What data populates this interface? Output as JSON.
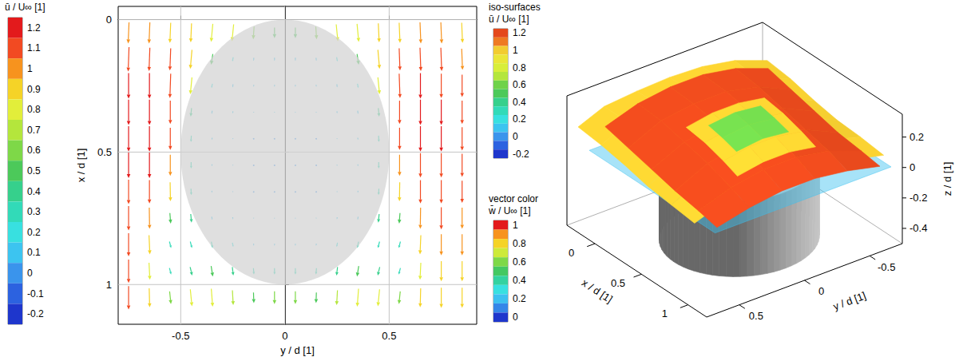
{
  "chart_data": [
    {
      "type": "vector",
      "x_label": "y / d [1]",
      "y_label": "x / d [1]",
      "xlim": [
        -0.8,
        0.92
      ],
      "xticks": [
        -0.5,
        0,
        0.5
      ],
      "ylim": [
        1.15,
        -0.05
      ],
      "yticks": [
        0,
        0.5,
        1
      ],
      "grid": true,
      "cylinder": {
        "y": 0,
        "x": 0.5,
        "d": 1
      },
      "vectors": {
        "y": [
          -0.75,
          -0.65,
          -0.55,
          -0.45,
          -0.35,
          -0.25,
          -0.15,
          -0.05,
          0.05,
          0.15,
          0.25,
          0.35,
          0.45,
          0.55,
          0.65,
          0.75,
          0.85
        ],
        "x": [
          0.05,
          0.15,
          0.25,
          0.35,
          0.45,
          0.55,
          0.65,
          0.75,
          0.85,
          0.95,
          1.05
        ],
        "u": [
          [
            1.0,
            1.0,
            0.95,
            0.9,
            0.85,
            0.8,
            0.6,
            0.5,
            0.5,
            0.6,
            0.8,
            0.85,
            0.9,
            0.95,
            1.0,
            1.0,
            0.95
          ],
          [
            1.15,
            1.1,
            1.05,
            0.9,
            0.5,
            0.2,
            0.15,
            0.15,
            0.15,
            0.15,
            0.2,
            0.5,
            0.9,
            1.05,
            1.1,
            1.1,
            1.0
          ],
          [
            1.2,
            1.2,
            1.15,
            0.8,
            0.2,
            0.15,
            0.1,
            0.1,
            0.1,
            0.1,
            0.15,
            0.2,
            0.8,
            1.15,
            1.2,
            1.15,
            1.05
          ],
          [
            1.2,
            1.2,
            1.1,
            0.4,
            0.15,
            0.1,
            0.05,
            0.05,
            0.05,
            0.05,
            0.1,
            0.15,
            0.4,
            1.1,
            1.2,
            1.2,
            1.1
          ],
          [
            1.2,
            1.2,
            1.05,
            0.3,
            0.1,
            0.05,
            0,
            0,
            0,
            0,
            0.05,
            0.1,
            0.3,
            1.05,
            1.2,
            1.2,
            1.1
          ],
          [
            1.2,
            1.2,
            1.0,
            0.3,
            0.1,
            0.05,
            0,
            0,
            0,
            0,
            0.05,
            0.1,
            0.3,
            1.0,
            1.15,
            1.15,
            1.1
          ],
          [
            1.15,
            1.1,
            0.9,
            0.3,
            0.1,
            0.05,
            0,
            0,
            0,
            0,
            0.05,
            0.1,
            0.3,
            0.9,
            1.1,
            1.1,
            1.05
          ],
          [
            1.15,
            1.0,
            0.5,
            0.4,
            0.15,
            0.1,
            0.05,
            0.05,
            0.05,
            0.05,
            0.1,
            0.15,
            0.4,
            0.5,
            1.0,
            1.05,
            1.0
          ],
          [
            1.1,
            0.9,
            0.3,
            0.3,
            0.3,
            0.2,
            0.1,
            0.1,
            0.1,
            0.1,
            0.2,
            0.3,
            0.3,
            0.3,
            0.9,
            1.0,
            1.0
          ],
          [
            1.1,
            0.8,
            0.3,
            0.4,
            0.5,
            0.4,
            0.3,
            0.3,
            0.3,
            0.3,
            0.4,
            0.5,
            0.4,
            0.3,
            0.8,
            0.95,
            0.95
          ],
          [
            1.1,
            0.9,
            0.6,
            0.8,
            0.85,
            0.7,
            0.5,
            0.6,
            0.6,
            0.5,
            0.7,
            0.85,
            0.8,
            0.6,
            0.9,
            0.95,
            0.95
          ]
        ],
        "v": [
          [
            -0.05,
            -0.05,
            -0.05,
            -0.05,
            -0.1,
            -0.1,
            -0.05,
            0,
            0,
            0.05,
            0.1,
            0.1,
            0.05,
            0.05,
            0.05,
            0.05,
            0.05
          ],
          [
            -0.05,
            -0.05,
            -0.05,
            -0.1,
            -0.1,
            -0.05,
            -0.02,
            0,
            0,
            0.02,
            0.05,
            0.1,
            0.1,
            0.05,
            0.05,
            0.05,
            0.05
          ],
          [
            0,
            0,
            -0.05,
            -0.1,
            -0.05,
            -0.02,
            -0.01,
            0,
            0,
            0.01,
            0.02,
            0.05,
            0.1,
            0.05,
            0,
            0,
            0
          ],
          [
            0,
            0,
            0,
            -0.05,
            -0.03,
            -0.01,
            0,
            0,
            0,
            0,
            0.01,
            0.03,
            0.05,
            0,
            0,
            0,
            0
          ],
          [
            0,
            0,
            0,
            -0.02,
            -0.02,
            0,
            0,
            0,
            0,
            0,
            0,
            0.02,
            0.02,
            0,
            0,
            0,
            0
          ],
          [
            0,
            0,
            0,
            0,
            0,
            0,
            0,
            0,
            0,
            0,
            0,
            0,
            0,
            0,
            0,
            0,
            0
          ],
          [
            0,
            0,
            0.02,
            0.02,
            0.02,
            0.01,
            0,
            0,
            0,
            0,
            -0.01,
            -0.02,
            -0.02,
            -0.02,
            0,
            0,
            0
          ],
          [
            0,
            0.02,
            0.05,
            0.05,
            0.03,
            0.02,
            0.01,
            0,
            0,
            -0.01,
            -0.02,
            -0.03,
            -0.05,
            -0.05,
            -0.02,
            0,
            0
          ],
          [
            0,
            0.05,
            0.1,
            0.1,
            0.08,
            0.05,
            0.02,
            0,
            0,
            -0.02,
            -0.05,
            -0.08,
            -0.1,
            -0.1,
            -0.05,
            0,
            0
          ],
          [
            0,
            0.05,
            0.1,
            0.12,
            0.1,
            0.06,
            0.03,
            0,
            0,
            -0.03,
            -0.06,
            -0.1,
            -0.12,
            -0.1,
            -0.05,
            0,
            0
          ],
          [
            0,
            0.03,
            0.08,
            0.1,
            0.08,
            0.05,
            0.02,
            0,
            0,
            -0.02,
            -0.05,
            -0.08,
            -0.1,
            -0.08,
            -0.03,
            0,
            0
          ]
        ]
      },
      "colorbar": {
        "label": "ū / U∞ [1]",
        "range": [
          -0.25,
          1.25
        ],
        "ticks": [
          1.2,
          1.1,
          1,
          0.9,
          0.8,
          0.7,
          0.6,
          0.5,
          0.4,
          0.3,
          0.2,
          0.1,
          0,
          -0.1,
          -0.2
        ],
        "colors": [
          "#e31a1c",
          "#f24a22",
          "#f7931e",
          "#f5d327",
          "#e2ee3a",
          "#b4e63c",
          "#7ed848",
          "#4cc95a",
          "#36d08c",
          "#32dab8",
          "#38e0e0",
          "#3cc4f0",
          "#3a94ec",
          "#2c62e0",
          "#1e36cc"
        ]
      }
    },
    {
      "type": "isosurface3d",
      "x_label": "x / d [1]",
      "y_label": "y / d [1]",
      "z_label": "z / d [1]",
      "xlim": [
        -0.3,
        1.2
      ],
      "xticks": [
        0,
        0.5,
        1
      ],
      "ylim": [
        -0.75,
        0.75
      ],
      "yticks": [
        -0.5,
        0,
        0.5
      ],
      "zlim": [
        -0.5,
        0.35
      ],
      "zticks": [
        -0.4,
        -0.2,
        0,
        0.2
      ],
      "cylinder": {
        "x": 0.5,
        "y": 0,
        "d": 1,
        "z": [
          -0.5,
          0
        ]
      },
      "plane": {
        "z": 0,
        "x": [
          -0.2,
          1.15
        ],
        "y": [
          -0.7,
          0.65
        ],
        "w": 0.2
      },
      "iso_surfaces": [
        {
          "value": 1.0,
          "x": [
            -0.25,
            0,
            0.25,
            0.5,
            0.75,
            1.0
          ],
          "y": [
            -0.75,
            -0.5,
            -0.25,
            0,
            0.25,
            0.5,
            0.7
          ],
          "z": [
            [
              0.12,
              0.2,
              0.24,
              0.25,
              0.24,
              0.22,
              0.15
            ],
            [
              0.1,
              0.18,
              0.24,
              0.26,
              0.25,
              0.22,
              0.13
            ],
            [
              0.06,
              0.15,
              0.22,
              0.25,
              0.24,
              0.2,
              0.1
            ],
            [
              0.03,
              0.12,
              0.2,
              0.22,
              0.21,
              0.16,
              0.06
            ],
            [
              0.02,
              0.08,
              0.16,
              0.18,
              0.17,
              0.12,
              0.04
            ],
            [
              0,
              0.05,
              0.1,
              0.12,
              0.11,
              0.08,
              0.02
            ]
          ]
        },
        {
          "value": 1.2,
          "x": [
            -0.1,
            0.15,
            0.4,
            0.65,
            0.9,
            1.1
          ],
          "y": [
            -0.65,
            -0.4,
            -0.15,
            0.1,
            0.35,
            0.6
          ],
          "z": [
            [
              0.16,
              0.24,
              0.28,
              0.28,
              0.25,
              0.18
            ],
            [
              0.12,
              0.22,
              0.27,
              0.27,
              0.24,
              0.14
            ],
            [
              0.08,
              0.18,
              0.24,
              0.24,
              0.2,
              0.1
            ],
            [
              0.04,
              0.14,
              0.2,
              0.2,
              0.16,
              0.06
            ],
            [
              0.02,
              0.1,
              0.14,
              0.14,
              0.1,
              0.03
            ],
            [
              0,
              0.05,
              0.08,
              0.08,
              0.05,
              0
            ]
          ]
        },
        {
          "value": 1.0,
          "x": [
            0.35,
            0.55,
            0.75,
            0.9
          ],
          "y": [
            -0.3,
            -0.1,
            0.1,
            0.3
          ],
          "z": [
            [
              0.26,
              0.29,
              0.29,
              0.26
            ],
            [
              0.24,
              0.27,
              0.27,
              0.24
            ],
            [
              0.2,
              0.23,
              0.23,
              0.2
            ],
            [
              0.16,
              0.19,
              0.19,
              0.16
            ]
          ]
        },
        {
          "value": 0.6,
          "x": [
            0.45,
            0.6,
            0.75
          ],
          "y": [
            -0.2,
            0,
            0.2
          ],
          "z": [
            [
              0.28,
              0.3,
              0.28
            ],
            [
              0.26,
              0.28,
              0.26
            ],
            [
              0.23,
              0.25,
              0.23
            ]
          ]
        }
      ],
      "iso_colorbar": {
        "title": "iso-surfaces",
        "label": "ū / U∞ [1]",
        "range": [
          -0.25,
          1.25
        ],
        "levels": [
          1.2,
          1.1,
          1,
          0.9,
          0.8,
          0.7,
          0.6,
          0.5,
          0.4,
          0.3,
          0.2,
          0.1,
          0,
          -0.1,
          -0.2
        ],
        "ticks": [
          1.2,
          1,
          0.8,
          0.6,
          0.4,
          0.2,
          0,
          -0.2
        ],
        "colors": [
          "#e4481c",
          "#ee7a22",
          "#f2cc30",
          "#eae638",
          "#d8ee3a",
          "#b4e63c",
          "#6fd24a",
          "#4cc95a",
          "#36d08c",
          "#32dab8",
          "#38e0e0",
          "#3cc4f0",
          "#3a94ec",
          "#2c62e0",
          "#1e36cc"
        ]
      },
      "vector_colorbar": {
        "title": "vector color",
        "label": "w̄ / U∞ [1]",
        "range": [
          -0.05,
          1.05
        ],
        "levels": [
          1,
          0.9,
          0.8,
          0.7,
          0.6,
          0.5,
          0.4,
          0.3,
          0.2,
          0.1,
          0
        ],
        "ticks": [
          1,
          0.8,
          0.6,
          0.4,
          0.2,
          0
        ],
        "colors": [
          "#e31a1c",
          "#f7931e",
          "#f5d327",
          "#cdea3a",
          "#7ed848",
          "#44c862",
          "#34d2a0",
          "#38e0e0",
          "#3cc0f0",
          "#3486e8",
          "#1e36cc"
        ]
      }
    }
  ]
}
